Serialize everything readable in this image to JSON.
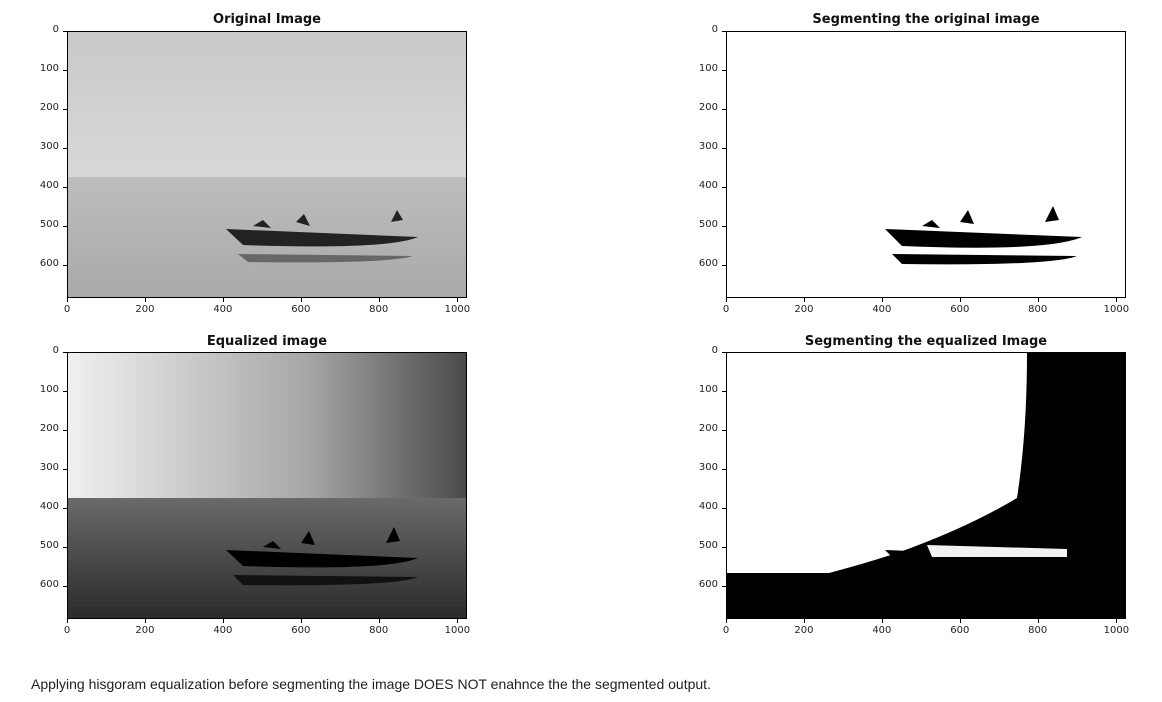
{
  "figure": {
    "caption": "Applying hisgoram equalization before segmenting the image DOES NOT enahnce the the segmented output."
  },
  "chart_data": [
    {
      "type": "image",
      "title": "Original Image",
      "xlabel": "",
      "ylabel": "",
      "xlim": [
        0,
        1024
      ],
      "ylim": [
        683,
        0
      ],
      "xticks": [
        0,
        200,
        400,
        600,
        800,
        1000
      ],
      "yticks": [
        0,
        100,
        200,
        300,
        400,
        500,
        600
      ],
      "content": "grayscale photo of a boat with people on calm water, light sky"
    },
    {
      "type": "image",
      "title": "Segmenting the original image",
      "xlabel": "",
      "ylabel": "",
      "xlim": [
        0,
        1024
      ],
      "ylim": [
        683,
        0
      ],
      "xticks": [
        0,
        200,
        400,
        600,
        800,
        1000
      ],
      "yticks": [
        0,
        100,
        200,
        300,
        400,
        500,
        600
      ],
      "content": "binary mask: white background, black boat silhouette and reflection"
    },
    {
      "type": "image",
      "title": "Equalized image",
      "xlabel": "",
      "ylabel": "",
      "xlim": [
        0,
        1024
      ],
      "ylim": [
        683,
        0
      ],
      "xticks": [
        0,
        200,
        400,
        600,
        800,
        1000
      ],
      "yticks": [
        0,
        100,
        200,
        300,
        400,
        500,
        600
      ],
      "content": "histogram-equalized grayscale photo with higher contrast, darker water and right side"
    },
    {
      "type": "image",
      "title": "Segmenting the equalized Image",
      "xlabel": "",
      "ylabel": "",
      "xlim": [
        0,
        1024
      ],
      "ylim": [
        683,
        0
      ],
      "xticks": [
        0,
        200,
        400,
        600,
        800,
        1000
      ],
      "yticks": [
        0,
        100,
        200,
        300,
        400,
        500,
        600
      ],
      "content": "binary mask: white upper-left region, black right side and lower water area"
    }
  ]
}
